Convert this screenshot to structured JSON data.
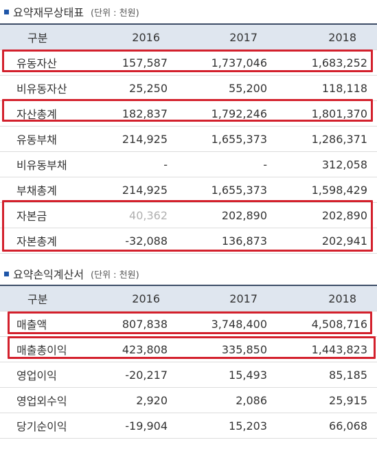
{
  "balance": {
    "title": "요약재무상태표",
    "unit": "(단위 : 천원)",
    "header": [
      "구분",
      "2016",
      "2017",
      "2018"
    ],
    "rows": [
      [
        "유동자산",
        "157,587",
        "1,737,046",
        "1,683,252"
      ],
      [
        "비유동자산",
        "25,250",
        "55,200",
        "118,118"
      ],
      [
        "자산총계",
        "182,837",
        "1,792,246",
        "1,801,370"
      ],
      [
        "유동부채",
        "214,925",
        "1,655,373",
        "1,286,371"
      ],
      [
        "비유동부채",
        "-",
        "-",
        "312,058"
      ],
      [
        "부채총계",
        "214,925",
        "1,655,373",
        "1,598,429"
      ],
      [
        "자본금",
        "40,362",
        "202,890",
        "202,890"
      ],
      [
        "자본총계",
        "-32,088",
        "136,873",
        "202,941"
      ]
    ]
  },
  "income": {
    "title": "요약손익계산서",
    "unit": "(단위 : 천원)",
    "header": [
      "구분",
      "2016",
      "2017",
      "2018"
    ],
    "rows": [
      [
        "매출액",
        "807,838",
        "3,748,400",
        "4,508,716"
      ],
      [
        "매출총이익",
        "423,808",
        "335,850",
        "1,443,823"
      ],
      [
        "영업이익",
        "-20,217",
        "15,493",
        "85,185"
      ],
      [
        "영업외수익",
        "2,920",
        "2,086",
        "25,915"
      ],
      [
        "당기순이익",
        "-19,904",
        "15,203",
        "66,068"
      ]
    ]
  },
  "colors": {
    "highlight": "#d3202c",
    "header_bg": "#dfe6ef",
    "bullet": "#1f56a8"
  }
}
